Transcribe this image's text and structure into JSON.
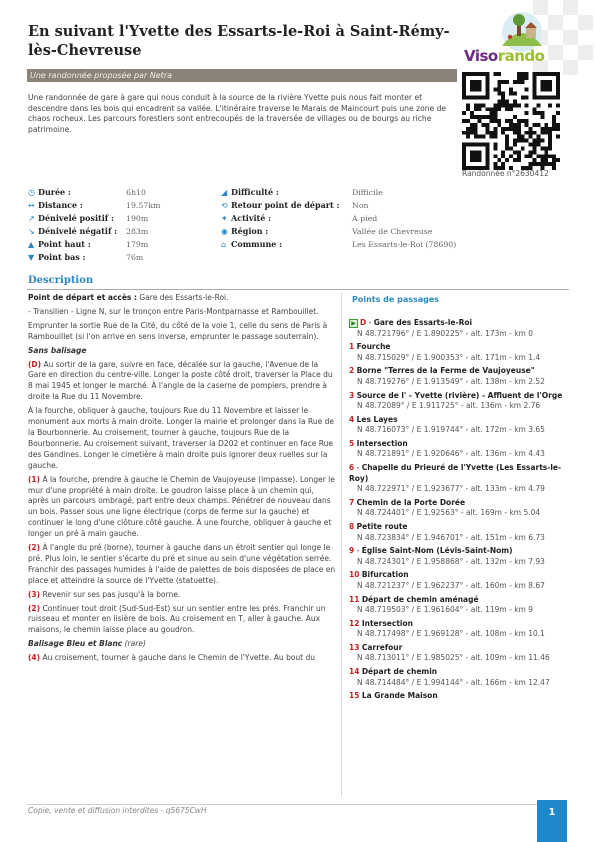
{
  "header": {
    "title": "En suivant l'Yvette des Essarts-le-Roi à Saint-Rémy-lès-Chevreuse",
    "subtitle": "Une randonnée proposée par Netra",
    "logo_left": "Viso",
    "logo_right": "rando",
    "rando_number": "Randonnée n°2630412"
  },
  "intro": "Une randonnée de gare à gare qui nous conduit à la source de la rivière Yvette puis nous fait monter et descendre dans les bois qui encadrent sa vallée. L'itinéraire traverse le Marais de Maincourt puis une zone de chaos rocheux. Les parcours forestiers sont entrecoupés de la traversée de villages ou de bourgs au riche patrimoine.",
  "facts_left": [
    {
      "icon": "clock-icon",
      "glyph": "◷",
      "label": "Durée :",
      "value": "6h10"
    },
    {
      "icon": "distance-icon",
      "glyph": "↔",
      "label": "Distance :",
      "value": "19.57km"
    },
    {
      "icon": "ascent-icon",
      "glyph": "↗",
      "label": "Dénivelé positif :",
      "value": "190m"
    },
    {
      "icon": "descent-icon",
      "glyph": "↘",
      "label": "Dénivelé négatif :",
      "value": "283m"
    },
    {
      "icon": "high-point-icon",
      "glyph": "▲",
      "label": "Point haut :",
      "value": "179m"
    },
    {
      "icon": "low-point-icon",
      "glyph": "▼",
      "label": "Point bas :",
      "value": "76m"
    }
  ],
  "facts_right": [
    {
      "icon": "difficulty-icon",
      "glyph": "◢",
      "label": "Difficulté :",
      "value": "Difficile"
    },
    {
      "icon": "return-icon",
      "glyph": "⟲",
      "label": "Retour point de départ :",
      "value": "Non"
    },
    {
      "icon": "activity-icon",
      "glyph": "✦",
      "label": "Activité :",
      "value": "A pied"
    },
    {
      "icon": "region-icon",
      "glyph": "◉",
      "label": "Région :",
      "value": "Vallée de Chevreuse"
    },
    {
      "icon": "commune-icon",
      "glyph": "⌂",
      "label": "Commune :",
      "value": "Les Essarts-le-Roi (78690)"
    }
  ],
  "description": {
    "heading": "Description",
    "start_label": "Point de départ et accès :",
    "start_value": "Gare des Essarts-le-Roi.",
    "access_lines": [
      "- Transilien - Ligne N, sur le tronçon entre Paris-Montparnasse et Rambouillet.",
      "Emprunter la sortie Rue de la Cité, du côté de la voie 1, celle du sens de Paris à Rambouillet (si l'on arrive en sens inverse, emprunter le passage souterrain)."
    ],
    "section1": "Sans balisage",
    "p_D_num": "(D)",
    "p_D": " Au sortir de la gare, suivre en face, décalée sur la gauche, l'Avenue de la Gare en direction du centre-ville. Longer la poste côté droit, traverser la Place du 8 mai 1945 et longer le marché. À l'angle de la caserne de pompiers, prendre à droite la Rue du 11 Novembre.",
    "p_fork": "À la fourche, obliquer à gauche, toujours Rue du 11 Novembre et laisser le monument aux morts à main droite. Longer la mairie et prolonger dans la Rue de la Bourbonnerie. Au croisement, tourner à gauche, toujours Rue de la Bourbonnerie. Au croisement suivant, traverser la D202 et continuer en face Rue des Gandines. Longer le cimetière à main droite puis ignorer deux ruelles sur la gauche.",
    "p_1_num": "(1)",
    "p_1": " À la fourche, prendre à gauche le Chemin de Vaujoyeuse (impasse). Longer le mur d'une propriété à main droite. Le goudron laisse place à un chemin qui, après un parcours ombragé, part entre deux champs. Pénétrer de nouveau dans un bois. Passer sous une ligne électrique (corps de ferme sur la gauche) et continuer le long d'une clôture côté gauche. À une fourche, obliquer à gauche et longer un pré à main gauche.",
    "p_2_num": "(2)",
    "p_2": " À l'angle du pré (borne), tourner à gauche dans un étroit sentier qui longe le pré. Plus loin, le sentier s'écarte du pré et sinue au sein d'une végétation serrée. Franchir des passages humides à l'aide de palettes de bois disposées de place en place et atteindre la source de l'Yvette (statuette).",
    "p_3_num": "(3)",
    "p_3": " Revenir sur ses pas jusqu'à la borne.",
    "p_2b_num": "(2)",
    "p_2b": " Continuer tout droit (Sud-Sud-Est) sur un sentier entre les prés. Franchir un ruisseau et monter en lisière de bois. Au croisement en T, aller à gauche. Aux maisons, le chemin laisse place au goudron.",
    "section2": "Balisage Bleu et Blanc",
    "section2_note": " (rare)",
    "p_4_num": "(4)",
    "p_4": " Au croisement, tourner à gauche dans le Chemin de l'Yvette. Au bout du"
  },
  "waypoints": {
    "heading": "Points de passages",
    "items": [
      {
        "num": "D",
        "name": "Gare des Essarts-le-Roi",
        "coord": "N 48.721796° / E 1.890225° - alt. 173m - km 0"
      },
      {
        "num": "1",
        "name": "Fourche",
        "coord": "N 48.715029° / E 1.900353° - alt. 171m - km 1.4"
      },
      {
        "num": "2",
        "name": "Borne \"Terres de la Ferme de Vaujoyeuse\"",
        "coord": "N 48.719276° / E 1.913549° - alt. 138m - km 2.52"
      },
      {
        "num": "3",
        "name": "Source de l' - Yvette (rivière) - Affluent de l'Orge",
        "coord": "N 48.72089° / E 1.911725° - alt. 136m - km 2.76"
      },
      {
        "num": "4",
        "name": "Les Layes",
        "coord": "N 48.716073° / E 1.919744° - alt. 172m - km 3.65"
      },
      {
        "num": "5",
        "name": "Intersection",
        "coord": "N 48.721891° / E 1.920646° - alt. 136m - km 4.43"
      },
      {
        "num": "6",
        "name": "Chapelle du Prieuré de l'Yvette (Les Essarts-le-Roy)",
        "coord": "N 48.722971° / E 1.923677° - alt. 133m - km 4.79"
      },
      {
        "num": "7",
        "name": "Chemin de la Porte Dorée",
        "coord": "N 48.724401° / E 1.92563° - alt. 169m - km 5.04"
      },
      {
        "num": "8",
        "name": "Petite route",
        "coord": "N 48.723834° / E 1.946701° - alt. 151m - km 6.73"
      },
      {
        "num": "9",
        "name": "Église Saint-Nom (Lévis-Saint-Nom)",
        "coord": "N 48.724301° / E 1.958868° - alt. 132m - km 7.93"
      },
      {
        "num": "10",
        "name": "Bifurcation",
        "coord": "N 48.721237° / E 1.962237° - alt. 160m - km 8.67"
      },
      {
        "num": "11",
        "name": "Départ de chemin aménagé",
        "coord": "N 48.719503° / E 1.961604° - alt. 119m - km 9"
      },
      {
        "num": "12",
        "name": "Intersection",
        "coord": "N 48.717498° / E 1.969128° - alt. 108m - km 10.1"
      },
      {
        "num": "13",
        "name": "Carrefour",
        "coord": "N 48.713011° / E 1.985025° - alt. 109m - km 11.46"
      },
      {
        "num": "14",
        "name": "Départ de chemin",
        "coord": "N 48.714484° / E 1.994144° - alt. 166m - km 12.47"
      },
      {
        "num": "15",
        "name": "La Grande Maison",
        "coord": ""
      }
    ]
  },
  "footer": {
    "text": "Copie, vente et diffusion interdites - q5675CwH",
    "page": "1"
  },
  "colors": {
    "accent": "#2c87c0",
    "subtitle_bar": "#8b8378",
    "waypoint_number": "#c02424",
    "logo_purple": "#6c2a84",
    "logo_green": "#9bbf2e"
  }
}
